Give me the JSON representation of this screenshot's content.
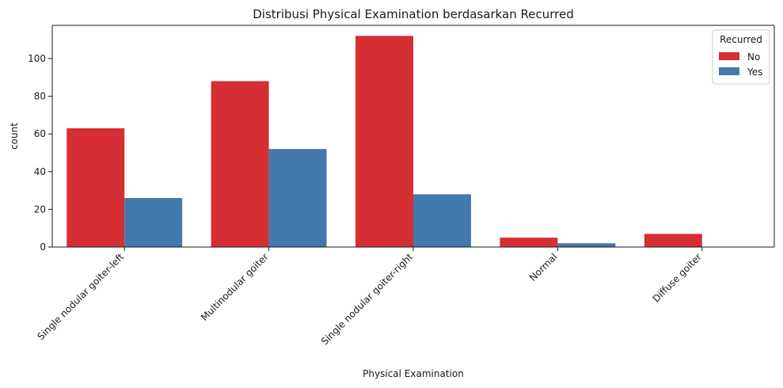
{
  "chart_data": {
    "type": "bar",
    "title": "Distribusi Physical Examination berdasarkan Recurred",
    "xlabel": "Physical Examination",
    "ylabel": "count",
    "categories": [
      "Single nodular goiter-left",
      "Multinodular goiter",
      "Single nodular goiter-right",
      "Normal",
      "Diffuse goiter"
    ],
    "series": [
      {
        "name": "No",
        "color": "#d62f33",
        "values": [
          63,
          88,
          112,
          5,
          7
        ]
      },
      {
        "name": "Yes",
        "color": "#4379ac",
        "values": [
          26,
          52,
          28,
          2,
          0
        ]
      }
    ],
    "ylim": [
      0,
      117.6
    ],
    "yticks": [
      0,
      20,
      40,
      60,
      80,
      100
    ],
    "grid": false,
    "legend": {
      "title": "Recurred",
      "position": "top-right"
    }
  }
}
